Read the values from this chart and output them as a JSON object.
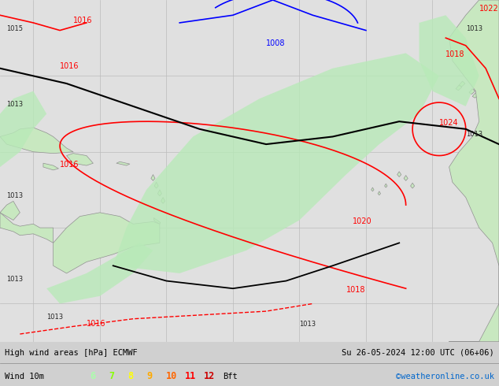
{
  "title_left": "High wind areas [hPa] ECMWF",
  "title_right": "Su 26-05-2024 12:00 UTC (06+06)",
  "legend_label": "Wind 10m",
  "legend_numbers": [
    "6",
    "7",
    "8",
    "9",
    "10",
    "11",
    "12",
    "Bft"
  ],
  "legend_colors": [
    "#aaffaa",
    "#88ff00",
    "#ffff00",
    "#ffaa00",
    "#ff6600",
    "#ff0000",
    "#cc0000",
    "#000000"
  ],
  "bg_color_ocean": "#e0e0e0",
  "bg_color_land": "#c8e8c0",
  "grid_color": "#bbbbbb",
  "isobar_color_red": "#ff0000",
  "isobar_color_blue": "#0000ff",
  "isobar_color_black": "#000000",
  "watermark": "©weatheronline.co.uk",
  "watermark_color": "#0066cc",
  "bottom_line_color": "#888888",
  "fig_width": 6.34,
  "fig_height": 4.9
}
